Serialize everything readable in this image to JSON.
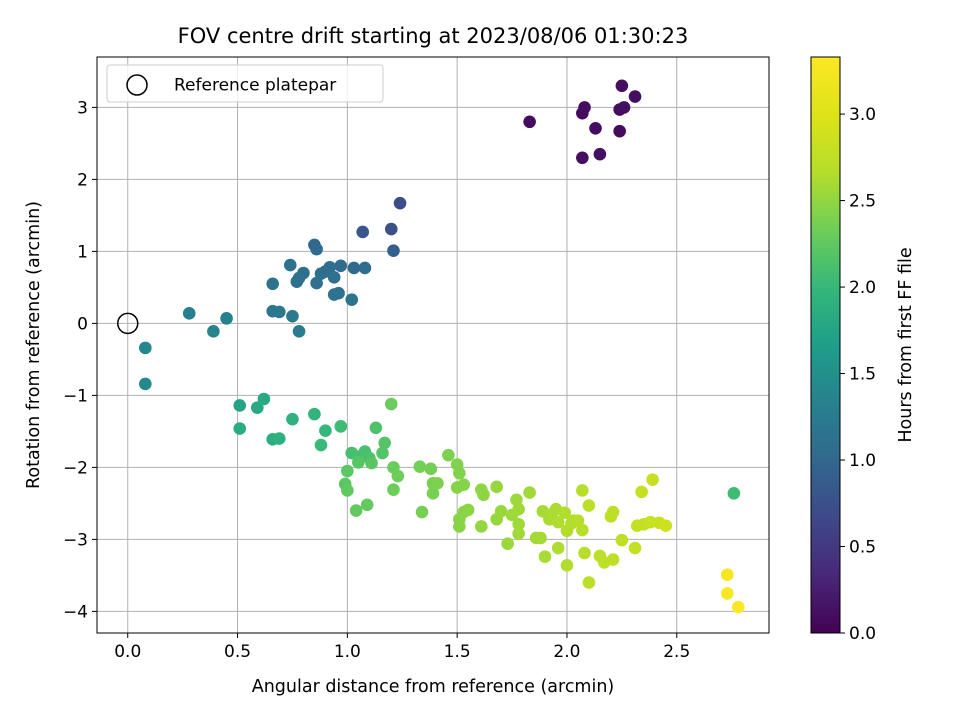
{
  "chart_data": {
    "type": "scatter",
    "title": "FOV centre drift starting at 2023/08/06 01:30:23",
    "xlabel": "Angular distance from reference (arcmin)",
    "ylabel": "Rotation from reference (arcmin)",
    "xlim": [
      -0.14,
      2.92
    ],
    "ylim": [
      -4.3,
      3.7
    ],
    "xticks": [
      0.0,
      0.5,
      1.0,
      1.5,
      2.0,
      2.5
    ],
    "xtick_labels": [
      "0.0",
      "0.5",
      "1.0",
      "1.5",
      "2.0",
      "2.5"
    ],
    "yticks": [
      -4,
      -3,
      -2,
      -1,
      0,
      1,
      2,
      3
    ],
    "ytick_labels": [
      "−4",
      "−3",
      "−2",
      "−1",
      "0",
      "1",
      "2",
      "3"
    ],
    "grid": true,
    "legend": {
      "position": "top-left",
      "label": "Reference platepar"
    },
    "reference_point": [
      0,
      0
    ],
    "colorbar": {
      "label": "Hours from first FF file",
      "range": [
        0,
        3.33
      ],
      "ticks": [
        0.0,
        0.5,
        1.0,
        1.5,
        2.0,
        2.5,
        3.0
      ],
      "tick_labels": [
        "0.0",
        "0.5",
        "1.0",
        "1.5",
        "2.0",
        "2.5",
        "3.0"
      ],
      "colormap": "viridis"
    },
    "points": [
      [
        1.83,
        2.8,
        0.1
      ],
      [
        2.07,
        2.92,
        0.08
      ],
      [
        2.08,
        3.0,
        0.1
      ],
      [
        2.07,
        2.3,
        0.12
      ],
      [
        2.13,
        2.71,
        0.1
      ],
      [
        2.15,
        2.35,
        0.13
      ],
      [
        2.24,
        2.67,
        0.09
      ],
      [
        2.24,
        2.97,
        0.1
      ],
      [
        2.25,
        3.3,
        0.11
      ],
      [
        2.26,
        3.0,
        0.12
      ],
      [
        2.31,
        3.15,
        0.11
      ],
      [
        1.24,
        1.67,
        0.7
      ],
      [
        1.2,
        1.31,
        0.75
      ],
      [
        1.07,
        1.27,
        0.8
      ],
      [
        1.21,
        1.01,
        0.9
      ],
      [
        0.85,
        1.09,
        1.0
      ],
      [
        0.86,
        1.03,
        1.02
      ],
      [
        1.03,
        0.77,
        1.04
      ],
      [
        1.08,
        0.77,
        1.06
      ],
      [
        0.97,
        0.8,
        1.05
      ],
      [
        0.92,
        0.78,
        1.07
      ],
      [
        0.9,
        0.72,
        1.08
      ],
      [
        0.88,
        0.69,
        1.08
      ],
      [
        0.94,
        0.64,
        1.1
      ],
      [
        0.86,
        0.56,
        1.1
      ],
      [
        0.8,
        0.7,
        1.09
      ],
      [
        0.78,
        0.63,
        1.1
      ],
      [
        0.77,
        0.58,
        1.11
      ],
      [
        0.74,
        0.81,
        1.12
      ],
      [
        0.66,
        0.55,
        1.14
      ],
      [
        0.94,
        0.4,
        1.14
      ],
      [
        0.96,
        0.42,
        1.13
      ],
      [
        1.02,
        0.33,
        1.15
      ],
      [
        0.66,
        0.17,
        1.19
      ],
      [
        0.69,
        0.16,
        1.2
      ],
      [
        0.75,
        0.1,
        1.22
      ],
      [
        0.78,
        -0.11,
        1.24
      ],
      [
        0.28,
        0.14,
        1.3
      ],
      [
        0.45,
        0.07,
        1.32
      ],
      [
        0.39,
        -0.11,
        1.35
      ],
      [
        0.08,
        -0.34,
        1.38
      ],
      [
        0.08,
        -0.84,
        1.4
      ],
      [
        0.51,
        -1.14,
        1.75
      ],
      [
        0.59,
        -1.17,
        1.8
      ],
      [
        0.62,
        -1.05,
        1.82
      ],
      [
        0.51,
        -1.46,
        1.85
      ],
      [
        0.66,
        -1.61,
        1.88
      ],
      [
        0.69,
        -1.6,
        1.9
      ],
      [
        0.75,
        -1.33,
        1.92
      ],
      [
        0.85,
        -1.26,
        1.95
      ],
      [
        0.9,
        -1.49,
        2.0
      ],
      [
        0.88,
        -1.69,
        2.02
      ],
      [
        0.97,
        -1.43,
        2.05
      ],
      [
        2.76,
        -2.36,
        2.05
      ],
      [
        1.02,
        -1.8,
        2.1
      ],
      [
        1.05,
        -1.85,
        2.12
      ],
      [
        1.08,
        -1.78,
        2.12
      ],
      [
        1.1,
        -1.87,
        2.15
      ],
      [
        1.13,
        -1.45,
        2.15
      ],
      [
        1.16,
        -1.8,
        2.18
      ],
      [
        1.17,
        -1.66,
        2.18
      ],
      [
        1.05,
        -1.93,
        2.2
      ],
      [
        1.11,
        -1.94,
        2.2
      ],
      [
        1.0,
        -2.05,
        2.22
      ],
      [
        0.99,
        -2.23,
        2.22
      ],
      [
        1.0,
        -2.32,
        2.25
      ],
      [
        1.04,
        -2.6,
        2.26
      ],
      [
        1.09,
        -2.52,
        2.28
      ],
      [
        1.2,
        -1.12,
        2.3
      ],
      [
        1.21,
        -2.0,
        2.3
      ],
      [
        1.23,
        -2.12,
        2.32
      ],
      [
        1.21,
        -2.31,
        2.32
      ],
      [
        1.33,
        -1.99,
        2.35
      ],
      [
        1.34,
        -2.62,
        2.36
      ],
      [
        1.38,
        -2.02,
        2.36
      ],
      [
        1.39,
        -2.22,
        2.38
      ],
      [
        1.39,
        -2.36,
        2.38
      ],
      [
        1.41,
        -2.22,
        2.4
      ],
      [
        1.46,
        -1.83,
        2.4
      ],
      [
        1.5,
        -1.96,
        2.42
      ],
      [
        1.51,
        -2.08,
        2.42
      ],
      [
        1.5,
        -2.28,
        2.44
      ],
      [
        1.53,
        -2.24,
        2.44
      ],
      [
        1.51,
        -2.82,
        2.45
      ],
      [
        1.51,
        -2.72,
        2.45
      ],
      [
        1.53,
        -2.62,
        2.46
      ],
      [
        1.55,
        -2.59,
        2.47
      ],
      [
        1.61,
        -2.31,
        2.48
      ],
      [
        1.62,
        -2.38,
        2.48
      ],
      [
        1.61,
        -2.82,
        2.5
      ],
      [
        1.68,
        -2.27,
        2.52
      ],
      [
        1.68,
        -2.72,
        2.52
      ],
      [
        1.7,
        -2.61,
        2.53
      ],
      [
        1.73,
        -3.06,
        2.54
      ],
      [
        1.75,
        -2.66,
        2.55
      ],
      [
        1.77,
        -2.45,
        2.55
      ],
      [
        1.78,
        -2.58,
        2.56
      ],
      [
        1.78,
        -2.79,
        2.56
      ],
      [
        1.78,
        -2.92,
        2.57
      ],
      [
        1.83,
        -2.35,
        2.57
      ],
      [
        1.86,
        -2.98,
        2.58
      ],
      [
        1.88,
        -2.98,
        2.58
      ],
      [
        1.89,
        -2.61,
        2.6
      ],
      [
        1.9,
        -3.24,
        2.6
      ],
      [
        1.92,
        -2.72,
        2.61
      ],
      [
        1.93,
        -2.65,
        2.62
      ],
      [
        1.95,
        -2.58,
        2.62
      ],
      [
        1.96,
        -2.76,
        2.63
      ],
      [
        1.96,
        -3.12,
        2.63
      ],
      [
        1.99,
        -2.63,
        2.64
      ],
      [
        2.0,
        -2.88,
        2.65
      ],
      [
        2.0,
        -3.36,
        2.65
      ],
      [
        2.02,
        -2.78,
        2.66
      ],
      [
        2.03,
        -2.74,
        2.66
      ],
      [
        2.05,
        -2.74,
        2.67
      ],
      [
        2.07,
        -2.32,
        2.68
      ],
      [
        2.07,
        -2.87,
        2.68
      ],
      [
        2.08,
        -3.19,
        2.69
      ],
      [
        2.1,
        -2.53,
        2.7
      ],
      [
        2.1,
        -3.6,
        2.7
      ],
      [
        2.15,
        -3.23,
        2.72
      ],
      [
        2.17,
        -3.32,
        2.72
      ],
      [
        2.2,
        -2.68,
        2.73
      ],
      [
        2.21,
        -2.62,
        2.74
      ],
      [
        2.21,
        -3.28,
        2.74
      ],
      [
        2.25,
        -3.01,
        2.76
      ],
      [
        2.31,
        -3.12,
        2.78
      ],
      [
        2.32,
        -2.81,
        2.78
      ],
      [
        2.34,
        -2.34,
        2.8
      ],
      [
        2.35,
        -2.79,
        2.8
      ],
      [
        2.38,
        -2.76,
        2.82
      ],
      [
        2.39,
        -2.17,
        2.82
      ],
      [
        2.42,
        -2.77,
        2.84
      ],
      [
        2.45,
        -2.81,
        2.86
      ],
      [
        2.73,
        -3.49,
        3.28
      ],
      [
        2.73,
        -3.75,
        3.3
      ],
      [
        2.78,
        -3.94,
        3.32
      ]
    ]
  }
}
